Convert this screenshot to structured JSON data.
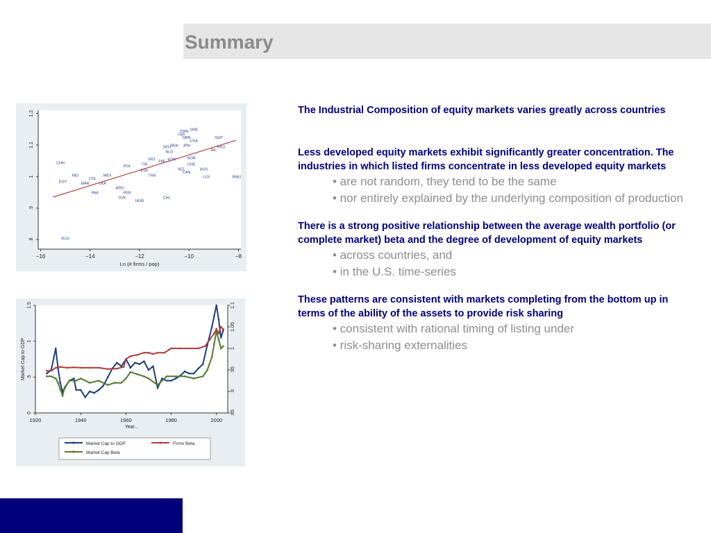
{
  "header": {
    "title": "Summary"
  },
  "colors": {
    "heading_text": "#8a8a8a",
    "header_band": "#e6e6e6",
    "footer_band": "#00007a",
    "paragraph_text": "#000080",
    "bullet_text": "#8c8c8c",
    "chart_panel": "#e9eef3"
  },
  "chart_data": [
    {
      "type": "scatter",
      "xlabel": "Ln (# firms / pop)",
      "ylabel": "",
      "xlim": [
        -16.1,
        -7.9
      ],
      "ylim": [
        0.77,
        1.21
      ],
      "xticks": [
        "−16",
        "−14",
        "−12",
        "−10",
        "−8"
      ],
      "yticks": [
        "1.2",
        "1.1",
        "1",
        ".9",
        ".8"
      ],
      "points": [
        {
          "label": "CHN",
          "x": -15.2,
          "y": 1.04
        },
        {
          "label": "IND",
          "x": -14.6,
          "y": 1.0
        },
        {
          "label": "EGY",
          "x": -15.1,
          "y": 0.98
        },
        {
          "label": "COL",
          "x": -13.9,
          "y": 0.99
        },
        {
          "label": "MAR",
          "x": -14.2,
          "y": 0.975
        },
        {
          "label": "PAK",
          "x": -13.8,
          "y": 0.945
        },
        {
          "label": "RUS",
          "x": -15.0,
          "y": 0.8
        },
        {
          "label": "MEX",
          "x": -13.3,
          "y": 1.0
        },
        {
          "label": "LKA",
          "x": -13.5,
          "y": 0.975
        },
        {
          "label": "POL",
          "x": -12.5,
          "y": 1.03
        },
        {
          "label": "ITA",
          "x": -11.8,
          "y": 1.035
        },
        {
          "label": "ESP",
          "x": -11.8,
          "y": 1.015
        },
        {
          "label": "THA",
          "x": -11.5,
          "y": 1.0
        },
        {
          "label": "ARG",
          "x": -12.8,
          "y": 0.96
        },
        {
          "label": "PER",
          "x": -12.5,
          "y": 0.945
        },
        {
          "label": "SVK",
          "x": -12.7,
          "y": 0.93
        },
        {
          "label": "HUN",
          "x": -12.0,
          "y": 0.92
        },
        {
          "label": "CHL",
          "x": -10.9,
          "y": 0.93
        },
        {
          "label": "PRT",
          "x": -11.5,
          "y": 1.05
        },
        {
          "label": "ZAF",
          "x": -11.1,
          "y": 1.045
        },
        {
          "label": "KOR",
          "x": -10.7,
          "y": 1.05
        },
        {
          "label": "NLD",
          "x": -10.8,
          "y": 1.075
        },
        {
          "label": "DEU",
          "x": -10.9,
          "y": 1.09
        },
        {
          "label": "BRA",
          "x": -10.6,
          "y": 1.095
        },
        {
          "label": "ISR",
          "x": -10.3,
          "y": 1.13
        },
        {
          "label": "TWN",
          "x": -10.2,
          "y": 1.14
        },
        {
          "label": "SWE",
          "x": -9.8,
          "y": 1.145
        },
        {
          "label": "GBR",
          "x": -10.1,
          "y": 1.12
        },
        {
          "label": "USA",
          "x": -9.8,
          "y": 1.11
        },
        {
          "label": "JPN",
          "x": -10.1,
          "y": 1.095
        },
        {
          "label": "SGP",
          "x": -8.8,
          "y": 1.12
        },
        {
          "label": "HKG",
          "x": -8.7,
          "y": 1.09
        },
        {
          "label": "IRL",
          "x": -9.0,
          "y": 1.08
        },
        {
          "label": "NOR",
          "x": -9.9,
          "y": 1.055
        },
        {
          "label": "CHE",
          "x": -9.9,
          "y": 1.035
        },
        {
          "label": "NZL",
          "x": -10.3,
          "y": 1.02
        },
        {
          "label": "CAN",
          "x": -10.1,
          "y": 1.01
        },
        {
          "label": "AUS",
          "x": -9.4,
          "y": 1.02
        },
        {
          "label": "LUX",
          "x": -9.3,
          "y": 0.995
        },
        {
          "label": "BMU",
          "x": -7.6,
          "y": 0.995
        }
      ],
      "fit_line": {
        "x": [
          -15.5,
          -8.1
        ],
        "y": [
          0.935,
          1.115
        ]
      }
    },
    {
      "type": "line",
      "xlabel": "Year...",
      "ylabel": "Market Cap to GDP",
      "xlim": [
        1920,
        2005
      ],
      "ylim_left": [
        0,
        1.5
      ],
      "ylim_right": [
        0.85,
        1.1
      ],
      "xticks": [
        "1920",
        "1940",
        "1960",
        "1980",
        "2000"
      ],
      "yticks_left": [
        "1.5",
        "1",
        ".5",
        "0"
      ],
      "yticks_right": [
        "1.1",
        "1.05",
        "1",
        ".95",
        ".9",
        ".85"
      ],
      "series": [
        {
          "name": "Market Cap to GDP",
          "color": "#1a3d7c",
          "axis": "left",
          "x": [
            1925,
            1927,
            1929,
            1930,
            1931,
            1932,
            1933,
            1935,
            1937,
            1938,
            1940,
            1942,
            1944,
            1946,
            1948,
            1950,
            1952,
            1954,
            1956,
            1958,
            1960,
            1962,
            1964,
            1966,
            1968,
            1970,
            1972,
            1974,
            1976,
            1978,
            1980,
            1982,
            1984,
            1986,
            1988,
            1990,
            1992,
            1994,
            1996,
            1998,
            1999,
            2000,
            2001,
            2002,
            2003
          ],
          "y": [
            0.55,
            0.6,
            0.9,
            0.62,
            0.42,
            0.3,
            0.35,
            0.45,
            0.48,
            0.32,
            0.32,
            0.22,
            0.3,
            0.28,
            0.32,
            0.38,
            0.5,
            0.62,
            0.7,
            0.65,
            0.75,
            0.63,
            0.7,
            0.68,
            0.72,
            0.6,
            0.65,
            0.35,
            0.48,
            0.45,
            0.45,
            0.48,
            0.52,
            0.58,
            0.55,
            0.55,
            0.62,
            0.68,
            0.95,
            1.2,
            1.35,
            1.5,
            1.3,
            1.05,
            1.15
          ]
        },
        {
          "name": "Firms Beta",
          "color": "#b33a3a",
          "axis": "right",
          "x": [
            1925,
            1927,
            1929,
            1931,
            1934,
            1937,
            1940,
            1944,
            1948,
            1952,
            1956,
            1959,
            1960,
            1962,
            1965,
            1968,
            1970,
            1972,
            1974,
            1977,
            1980,
            1984,
            1988,
            1992,
            1995,
            1997,
            1999,
            2000,
            2001,
            2002,
            2003
          ],
          "y": [
            0.948,
            0.948,
            0.955,
            0.957,
            0.955,
            0.956,
            0.955,
            0.955,
            0.955,
            0.952,
            0.953,
            0.957,
            0.975,
            0.982,
            0.985,
            0.99,
            0.99,
            0.987,
            0.99,
            0.99,
            1.0,
            1.0,
            1.0,
            1.0,
            1.005,
            1.02,
            1.035,
            1.045,
            1.035,
            1.05,
            1.045
          ]
        },
        {
          "name": "Market Cap Beta",
          "color": "#4e7a2a",
          "axis": "right",
          "x": [
            1925,
            1927,
            1929,
            1930,
            1931,
            1932,
            1933,
            1935,
            1938,
            1940,
            1944,
            1948,
            1952,
            1955,
            1958,
            1960,
            1962,
            1965,
            1968,
            1970,
            1974,
            1978,
            1982,
            1986,
            1990,
            1994,
            1996,
            1998,
            1999,
            2000,
            2001,
            2002,
            2003
          ],
          "y": [
            0.935,
            0.935,
            0.93,
            0.92,
            0.905,
            0.89,
            0.91,
            0.925,
            0.925,
            0.93,
            0.92,
            0.925,
            0.915,
            0.92,
            0.92,
            0.93,
            0.945,
            0.94,
            0.935,
            0.93,
            0.915,
            0.935,
            0.935,
            0.935,
            0.93,
            0.935,
            0.95,
            0.98,
            1.01,
            1.04,
            1.02,
            1.0,
            1.005
          ]
        }
      ]
    }
  ],
  "text": {
    "p1": "The Industrial Composition of equity markets varies greatly across countries",
    "p2": "Less developed equity markets exhibit significantly greater concentration. The industries in which listed firms concentrate in less developed equity markets",
    "p2_bullets": [
      "• are not random, they tend to be the same",
      "• nor entirely explained by the underlying composition of production"
    ],
    "p3": "There is a strong positive relationship between the average wealth portfolio (or complete market) beta and the degree of development of equity markets",
    "p3_bullets": [
      "• across countries, and",
      "• in the U.S. time-series"
    ],
    "p4": "These patterns are consistent with markets completing from the bottom up in terms of the ability of the assets to provide risk sharing",
    "p4_bullets": [
      "• consistent with rational timing of listing under",
      "• risk-sharing externalities"
    ]
  }
}
